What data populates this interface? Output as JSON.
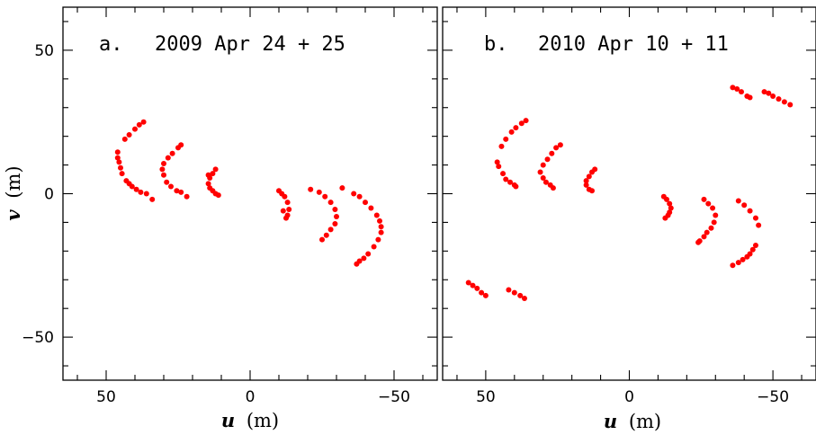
{
  "chart_data": [
    {
      "type": "scatter",
      "panel_label": "a.",
      "title": "2009 Apr 24 + 25",
      "xlabel_var": "u",
      "xlabel_unit": "(m)",
      "ylabel_var": "v",
      "ylabel_unit": "(m)",
      "xlim": [
        65,
        -65
      ],
      "ylim": [
        -65,
        65
      ],
      "x_inverted": true,
      "xticks": [
        50,
        0,
        -50
      ],
      "yticks": [
        50,
        0,
        -50
      ],
      "xtick_labels": [
        "50",
        "0",
        "−50"
      ],
      "ytick_labels": [
        "50",
        "0",
        "−50"
      ],
      "marker_color": "#ff0000",
      "series": [
        {
          "points": [
            [
              37,
              25
            ],
            [
              38.5,
              24
            ],
            [
              40,
              22.5
            ],
            [
              42,
              20.5
            ],
            [
              43.5,
              19
            ],
            [
              46,
              14.5
            ],
            [
              46,
              12.5
            ],
            [
              45.5,
              11
            ],
            [
              45,
              9
            ],
            [
              44.5,
              7
            ],
            [
              43,
              4.5
            ],
            [
              42,
              3.5
            ],
            [
              41,
              2.5
            ],
            [
              39.5,
              1.5
            ],
            [
              38,
              0.5
            ],
            [
              36,
              0
            ],
            [
              34,
              -2
            ],
            [
              24,
              17
            ],
            [
              25,
              16
            ],
            [
              27,
              14
            ],
            [
              28.5,
              12.5
            ],
            [
              30,
              10.5
            ],
            [
              30.5,
              8.5
            ],
            [
              30,
              6.5
            ],
            [
              29,
              4
            ],
            [
              27.5,
              2.5
            ],
            [
              25.5,
              1
            ],
            [
              24,
              0.5
            ],
            [
              22,
              -1
            ],
            [
              12,
              8.5
            ],
            [
              13,
              7
            ],
            [
              14,
              5.5
            ],
            [
              14.5,
              3.5
            ],
            [
              14,
              2
            ],
            [
              13,
              1
            ],
            [
              12,
              0
            ],
            [
              11,
              -0.5
            ],
            [
              14.5,
              6.5
            ],
            [
              -10,
              1
            ],
            [
              -11,
              0
            ],
            [
              -12,
              -1
            ],
            [
              -13,
              -3
            ],
            [
              -13.5,
              -5.5
            ],
            [
              -13,
              -7.5
            ],
            [
              -12.5,
              -8.5
            ],
            [
              -11.5,
              -6
            ],
            [
              -21,
              1.5
            ],
            [
              -24,
              0.5
            ],
            [
              -26,
              -1
            ],
            [
              -28,
              -3
            ],
            [
              -29.5,
              -5.5
            ],
            [
              -30,
              -8
            ],
            [
              -29.5,
              -10.5
            ],
            [
              -28,
              -12.5
            ],
            [
              -26.5,
              -14.5
            ],
            [
              -25,
              -16
            ],
            [
              -32,
              2
            ],
            [
              -36,
              0
            ],
            [
              -38,
              -1
            ],
            [
              -40,
              -3
            ],
            [
              -42,
              -5
            ],
            [
              -44,
              -7.5
            ],
            [
              -45,
              -9.5
            ],
            [
              -45.5,
              -11.5
            ],
            [
              -45.5,
              -13.5
            ],
            [
              -44.5,
              -16
            ],
            [
              -43,
              -18.5
            ],
            [
              -41,
              -21
            ],
            [
              -39.5,
              -22.5
            ],
            [
              -38,
              -23.5
            ],
            [
              -37,
              -24.5
            ]
          ]
        }
      ]
    },
    {
      "type": "scatter",
      "panel_label": "b.",
      "title": "2010 Apr 10 + 11",
      "xlabel_var": "u",
      "xlabel_unit": "(m)",
      "ylabel_var": "",
      "ylabel_unit": "",
      "xlim": [
        65,
        -65
      ],
      "ylim": [
        -65,
        65
      ],
      "x_inverted": true,
      "xticks": [
        50,
        0,
        -50
      ],
      "yticks": [
        50,
        0,
        -50
      ],
      "xtick_labels": [
        "50",
        "0",
        "−50"
      ],
      "ytick_labels": [],
      "marker_color": "#ff0000",
      "series": [
        {
          "points": [
            [
              36,
              25.5
            ],
            [
              37.5,
              24.5
            ],
            [
              39.5,
              23
            ],
            [
              41,
              21.5
            ],
            [
              43,
              19
            ],
            [
              44.5,
              16.5
            ],
            [
              46,
              11
            ],
            [
              45.5,
              9.5
            ],
            [
              44,
              7
            ],
            [
              43,
              5
            ],
            [
              41.5,
              4
            ],
            [
              40,
              3
            ],
            [
              39.5,
              2.5
            ],
            [
              24,
              17
            ],
            [
              25.5,
              16
            ],
            [
              27,
              14
            ],
            [
              28.5,
              12
            ],
            [
              30,
              10
            ],
            [
              31,
              7.5
            ],
            [
              30,
              5.5
            ],
            [
              29,
              4
            ],
            [
              27.5,
              3
            ],
            [
              26.5,
              2
            ],
            [
              12,
              8.5
            ],
            [
              13,
              7.5
            ],
            [
              14,
              6
            ],
            [
              15,
              4.5
            ],
            [
              15,
              3
            ],
            [
              14,
              1.5
            ],
            [
              13,
              1
            ],
            [
              -12,
              -1
            ],
            [
              -13,
              -2
            ],
            [
              -14,
              -3.5
            ],
            [
              -14.5,
              -5
            ],
            [
              -14,
              -6.5
            ],
            [
              -13.5,
              -7.5
            ],
            [
              -12.5,
              -8.5
            ],
            [
              -26,
              -2
            ],
            [
              -27.5,
              -3.5
            ],
            [
              -29,
              -5
            ],
            [
              -30,
              -7.5
            ],
            [
              -29.5,
              -10
            ],
            [
              -28.5,
              -12
            ],
            [
              -27,
              -13.5
            ],
            [
              -26,
              -15
            ],
            [
              -24.5,
              -16.5
            ],
            [
              -24,
              -17
            ],
            [
              -38,
              -2.5
            ],
            [
              -40,
              -4
            ],
            [
              -42,
              -6
            ],
            [
              -44,
              -8.5
            ],
            [
              -45,
              -11
            ],
            [
              -44,
              -18
            ],
            [
              -43,
              -19.5
            ],
            [
              -42,
              -21
            ],
            [
              -41,
              -22
            ],
            [
              -39.5,
              -23
            ],
            [
              -38,
              -24
            ],
            [
              -36,
              -25
            ],
            [
              -36,
              37
            ],
            [
              -37.5,
              36.5
            ],
            [
              -39,
              35.5
            ],
            [
              -41,
              34
            ],
            [
              -42,
              33.5
            ],
            [
              -47,
              35.5
            ],
            [
              -48.5,
              35
            ],
            [
              -50,
              34
            ],
            [
              -52,
              33
            ],
            [
              -54,
              32
            ],
            [
              -56,
              31
            ],
            [
              56,
              -31
            ],
            [
              54.5,
              -32
            ],
            [
              53,
              -33
            ],
            [
              51.5,
              -34.5
            ],
            [
              50,
              -35.5
            ],
            [
              42,
              -33.5
            ],
            [
              40,
              -34.5
            ],
            [
              38,
              -35.5
            ],
            [
              36.5,
              -36.5
            ]
          ]
        }
      ]
    }
  ]
}
